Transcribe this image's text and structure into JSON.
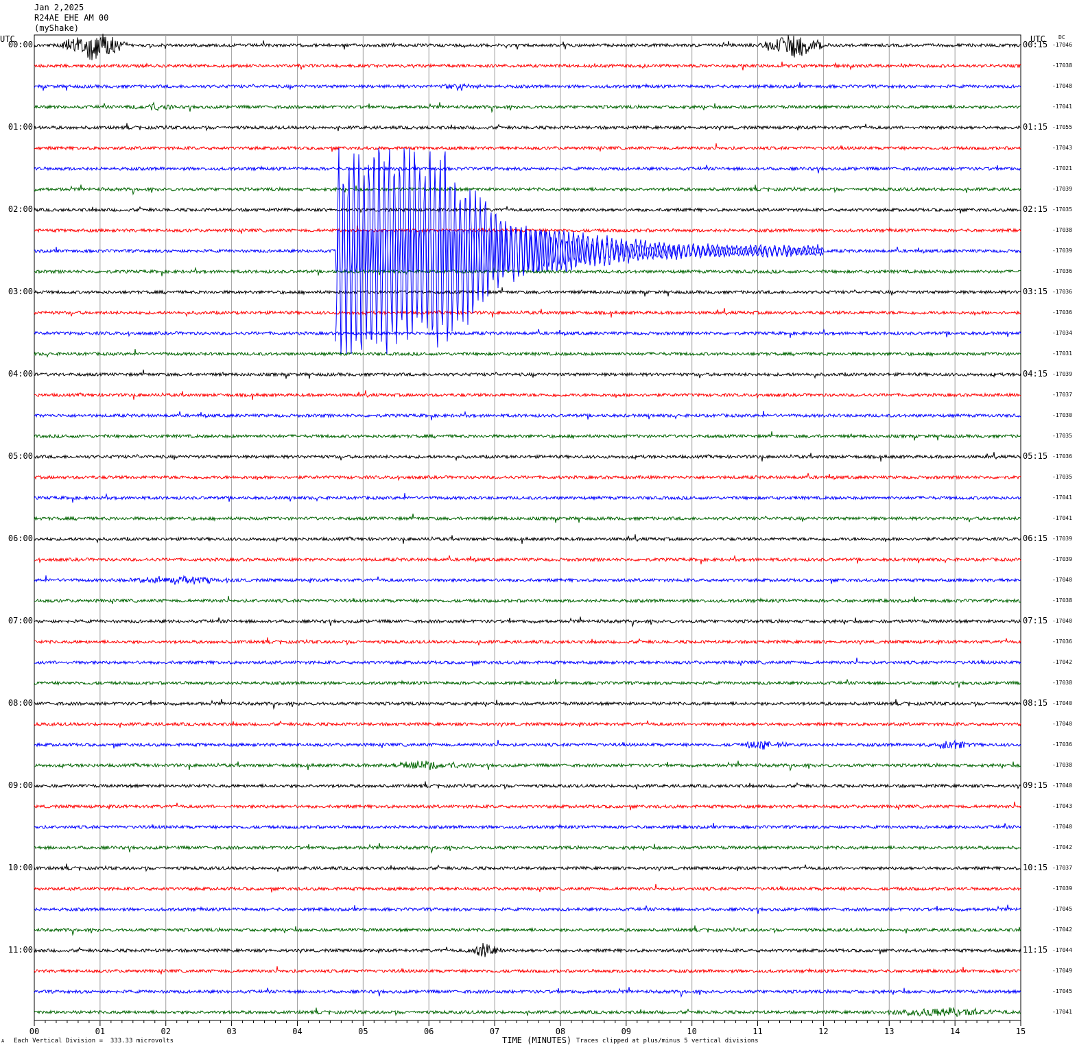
{
  "header": {
    "date": "Jan 2,2025",
    "station": "R24AE EHE AM 00",
    "network": "(myShake)"
  },
  "utc_left": "UTC",
  "utc_right": "UTC",
  "dc_label": "DC",
  "footer": {
    "corner_mark": "A",
    "vertical_division": "Each Vertical Division =  333.33 microvolts",
    "x_axis_title": "TIME (MINUTES)",
    "clip_note": "Traces clipped at plus/minus 5 vertical divisions"
  },
  "colors": {
    "black": "#000000",
    "red": "#ff0000",
    "blue": "#0000ff",
    "green": "#006400",
    "grid": "#a0a0a0"
  },
  "chart_data": {
    "type": "line",
    "title": "Jan 2,2025 R24AE EHE AM 00 (myShake)",
    "xlabel": "TIME (MINUTES)",
    "xlim": [
      0,
      15
    ],
    "x_ticks": [
      "00",
      "01",
      "02",
      "03",
      "04",
      "05",
      "06",
      "07",
      "08",
      "09",
      "10",
      "11",
      "12",
      "13",
      "14",
      "15"
    ],
    "row_minutes": 15,
    "left_times": [
      "00:00",
      "01:00",
      "02:00",
      "03:00",
      "04:00",
      "05:00",
      "06:00",
      "07:00",
      "08:00",
      "09:00",
      "10:00",
      "11:00"
    ],
    "right_times": [
      "00:15",
      "01:15",
      "02:15",
      "03:15",
      "04:15",
      "05:15",
      "06:15",
      "07:15",
      "08:15",
      "09:15",
      "10:15",
      "11:15"
    ],
    "color_cycle": [
      "black",
      "red",
      "blue",
      "green"
    ],
    "dc_offsets": [
      "-17046",
      "-17038",
      "-17048",
      "-17041",
      "-17055",
      "-17043",
      "-17021",
      "-17039",
      "-17035",
      "-17038",
      "-17039",
      "-17036",
      "-17036",
      "-17036",
      "-17034",
      "-17031",
      "-17039",
      "-17037",
      "-17030",
      "-17035",
      "-17036",
      "-17035",
      "-17041",
      "-17041",
      "-17039",
      "-17039",
      "-17040",
      "-17038",
      "-17040",
      "-17036",
      "-17042",
      "-17038",
      "-17040",
      "-17040",
      "-17036",
      "-17038",
      "-17040",
      "-17043",
      "-17040",
      "-17042",
      "-17037",
      "-17039",
      "-17045",
      "-17042",
      "-17044",
      "-17049",
      "-17045",
      "-17041"
    ],
    "events": [
      {
        "row": 0,
        "minute": 0.9,
        "amp": 1.1,
        "dur": 0.6
      },
      {
        "row": 0,
        "minute": 11.55,
        "amp": 0.9,
        "dur": 0.6
      },
      {
        "row": 2,
        "minute": 6.5,
        "amp": 0.25,
        "dur": 0.4
      },
      {
        "row": 3,
        "minute": 1.8,
        "amp": 0.25,
        "dur": 0.4
      },
      {
        "row": 26,
        "minute": 2.2,
        "amp": 0.3,
        "dur": 1.0
      },
      {
        "row": 34,
        "minute": 11.1,
        "amp": 0.3,
        "dur": 0.5
      },
      {
        "row": 34,
        "minute": 13.95,
        "amp": 0.35,
        "dur": 0.4
      },
      {
        "row": 35,
        "minute": 6.0,
        "amp": 0.3,
        "dur": 0.8
      },
      {
        "row": 44,
        "minute": 6.85,
        "amp": 0.6,
        "dur": 0.3
      },
      {
        "row": 47,
        "minute": 13.8,
        "amp": 0.35,
        "dur": 1.0
      }
    ],
    "earthquake": {
      "row": 10,
      "onset_minute": 4.58,
      "strong_end_minute": 6.3,
      "coda_end_minute": 12.0,
      "clip_divisions": 5
    }
  }
}
